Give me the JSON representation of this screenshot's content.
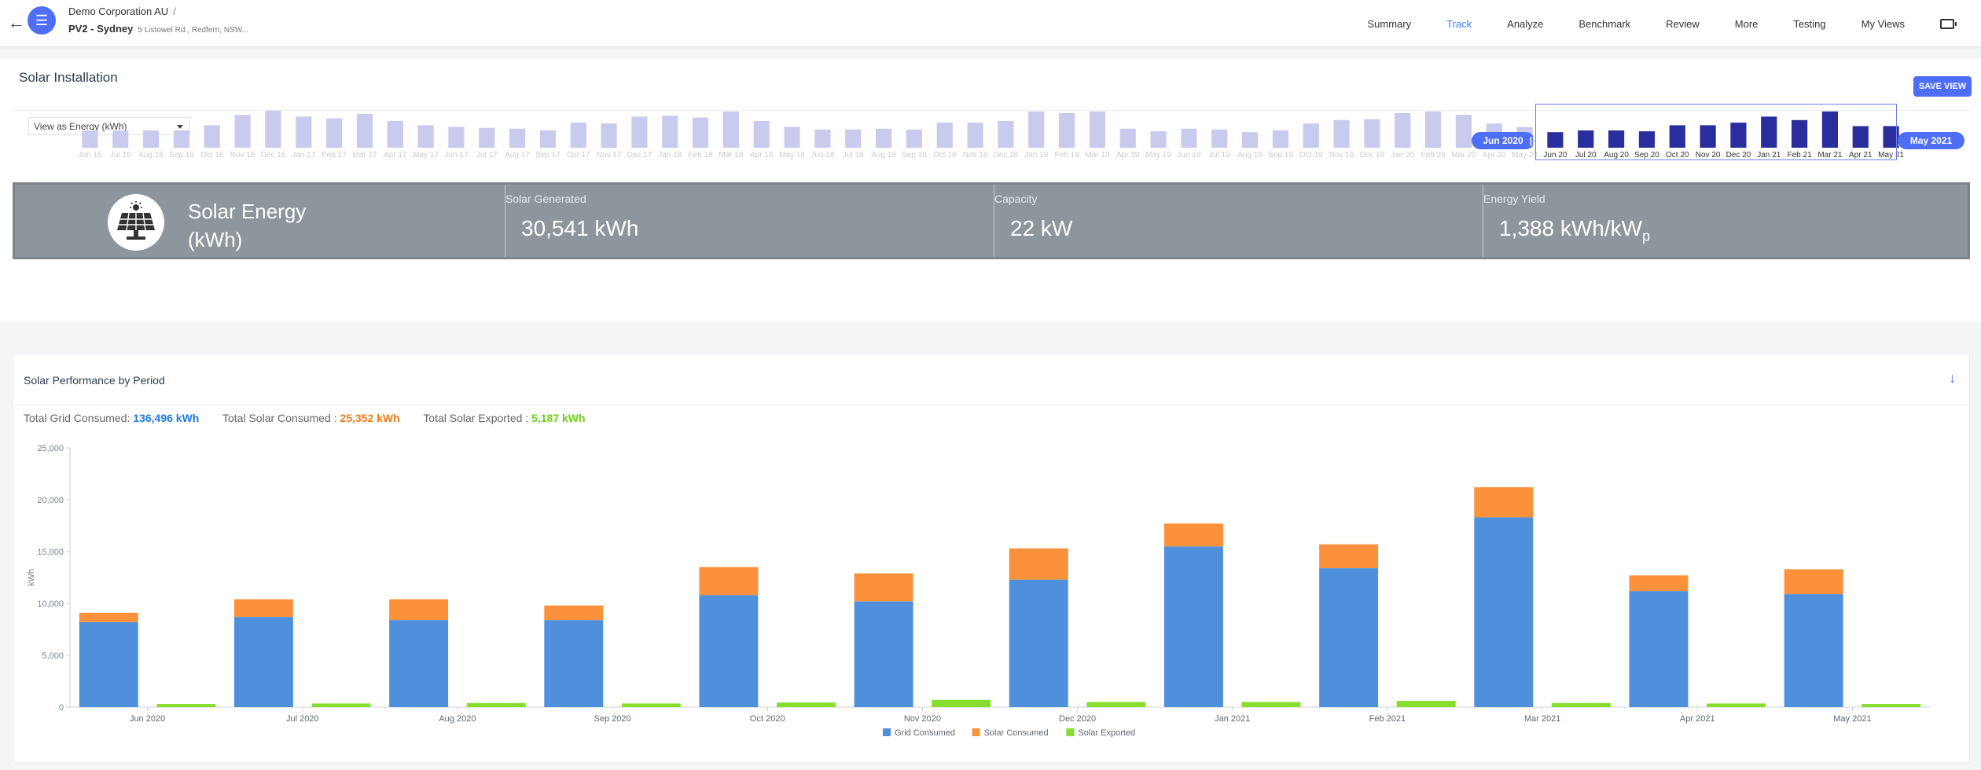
{
  "header": {
    "org": "Demo Corporation AU",
    "site": "PV2 - Sydney",
    "address": "5 Listowel Rd., Redfern, NSW...",
    "nav": [
      "Summary",
      "Track",
      "Analyze",
      "Benchmark",
      "Review",
      "More",
      "Testing",
      "My Views"
    ],
    "active_nav": "Track"
  },
  "installation": {
    "title": "Solar Installation",
    "save_label": "SAVE VIEW",
    "view_select": "View as Energy (kWh)",
    "range_start": "Jun 2020",
    "range_end": "May 2021"
  },
  "navigator": {
    "labels": [
      "Jun 16",
      "Jul 16",
      "Aug 16",
      "Sep 16",
      "Oct 16",
      "Nov 16",
      "Dec 16",
      "Jan 17",
      "Feb 17",
      "Mar 17",
      "Apr 17",
      "May 17",
      "Jun 17",
      "Jul 17",
      "Aug 17",
      "Sep 17",
      "Oct 17",
      "Nov 17",
      "Dec 17",
      "Jan 18",
      "Feb 18",
      "Mar 18",
      "Apr 18",
      "May 18",
      "Jun 18",
      "Jul 18",
      "Aug 18",
      "Sep 18",
      "Oct 18",
      "Nov 18",
      "Dec 18",
      "Jan 19",
      "Feb 19",
      "Mar 19",
      "Apr 19",
      "May 19",
      "Jun 19",
      "Jul 19",
      "Aug 19",
      "Sep 19",
      "Oct 19",
      "Nov 19",
      "Dec 19",
      "Jan 20",
      "Feb 20",
      "Mar 20",
      "Apr 20",
      "May 20",
      "Jun 20",
      "Jul 20",
      "Aug 20",
      "Sep 20",
      "Oct 20",
      "Nov 20",
      "Dec 20",
      "Jan 21",
      "Feb 21",
      "Mar 21",
      "Apr 21",
      "May 21"
    ],
    "values": [
      2.0,
      2.0,
      2.0,
      2.0,
      2.6,
      3.8,
      4.3,
      3.6,
      3.4,
      3.9,
      3.1,
      2.6,
      2.4,
      2.3,
      2.2,
      2.0,
      2.9,
      2.8,
      3.6,
      3.7,
      3.5,
      4.2,
      3.1,
      2.4,
      2.1,
      2.1,
      2.2,
      2.1,
      2.9,
      2.9,
      3.1,
      4.2,
      4.0,
      4.2,
      2.2,
      1.9,
      2.2,
      2.1,
      1.8,
      2.0,
      2.8,
      3.2,
      3.3,
      4.0,
      4.2,
      3.8,
      2.8,
      2.4,
      1.8,
      2.0,
      2.0,
      1.9,
      2.6,
      2.6,
      2.9,
      3.6,
      3.2,
      4.2,
      2.5,
      2.5
    ],
    "selected_from": 48,
    "selected_to": 59
  },
  "summary": {
    "label": "Solar Energy (kWh)",
    "metrics": [
      {
        "name": "Solar Generated",
        "value": "30,541 kWh"
      },
      {
        "name": "Capacity",
        "value": "22 kW"
      },
      {
        "name": "Energy Yield",
        "value": "1,388 kWh/kW",
        "sub": "p"
      }
    ]
  },
  "performance": {
    "title": "Solar Performance by Period",
    "totals": [
      {
        "label": "Total Grid Consumed:",
        "value": "136,496 kWh",
        "color": "#1e7be0"
      },
      {
        "label": "Total Solar Consumed :",
        "value": "25,352 kWh",
        "color": "#f07c1a"
      },
      {
        "label": "Total Solar Exported :",
        "value": "5,187 kWh",
        "color": "#6fd11a"
      }
    ]
  },
  "chart_data": {
    "type": "bar",
    "categories": [
      "Jun 2020",
      "Jul 2020",
      "Aug 2020",
      "Sep 2020",
      "Oct 2020",
      "Nov 2020",
      "Dec 2020",
      "Jan 2021",
      "Feb 2021",
      "Mar 2021",
      "Apr 2021",
      "May 2021"
    ],
    "series": [
      {
        "name": "Grid Consumed",
        "color": "#4f90dd",
        "stack": "a",
        "values": [
          8200,
          8700,
          8400,
          8400,
          10800,
          10200,
          12300,
          15500,
          13400,
          18300,
          11200,
          10900
        ]
      },
      {
        "name": "Solar Consumed",
        "color": "#fb913b",
        "stack": "a",
        "values": [
          900,
          1700,
          2000,
          1400,
          2700,
          2700,
          3000,
          2200,
          2300,
          2900,
          1500,
          2400
        ]
      },
      {
        "name": "Solar Exported",
        "color": "#86dd2e",
        "stack": "b",
        "values": [
          300,
          350,
          400,
          350,
          450,
          700,
          500,
          500,
          600,
          400,
          350,
          300
        ]
      }
    ],
    "ylabel": "kWh",
    "ylim": [
      0,
      25000
    ],
    "yticks": [
      "0",
      "5,000",
      "10,000",
      "15,000",
      "20,000",
      "25,000"
    ],
    "grid": false,
    "legend": "bottom"
  }
}
